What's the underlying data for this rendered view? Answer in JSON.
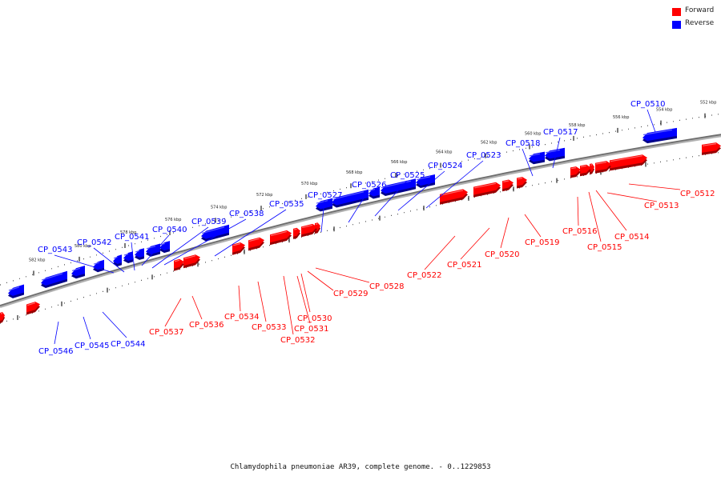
{
  "legend": {
    "forward_label": "Forward",
    "reverse_label": "Reverse",
    "forward_color": "#ff0000",
    "reverse_color": "#0000ff"
  },
  "caption": "Chlamydophila pneumoniae AR39, complete genome. - 0..1229853",
  "ruler_labels": [
    "552 kbp",
    "554 kbp",
    "556 kbp",
    "558 kbp",
    "560 kbp",
    "562 kbp",
    "564 kbp",
    "566 kbp",
    "568 kbp",
    "570 kbp",
    "572 kbp",
    "574 kbp",
    "576 kbp",
    "578 kbp",
    "580 kbp",
    "582 kbp"
  ],
  "reverse_genes": [
    "CP_0510",
    "CP_0517",
    "CP_0518",
    "CP_0523",
    "CP_0524",
    "CP_0525",
    "CP_0526",
    "CP_0527",
    "CP_0535",
    "CP_0538",
    "CP_0539",
    "CP_0540",
    "CP_0541",
    "CP_0542",
    "CP_0543",
    "CP_0544",
    "CP_0545",
    "CP_0546"
  ],
  "forward_genes": [
    "CP_0512",
    "CP_0513",
    "CP_0514",
    "CP_0515",
    "CP_0516",
    "CP_0519",
    "CP_0520",
    "CP_0521",
    "CP_0522",
    "CP_0528",
    "CP_0529",
    "CP_0530",
    "CP_0531",
    "CP_0532",
    "CP_0533",
    "CP_0534",
    "CP_0536",
    "CP_0537"
  ]
}
